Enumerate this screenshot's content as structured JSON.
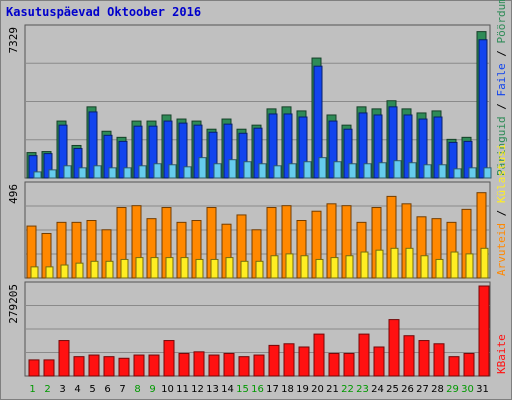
{
  "title": "Kasutuspäevad Oktoober 2016",
  "colors": {
    "background": "#c0c0c0",
    "plot_bg": "#c0c0c0",
    "gridline": "#8a8a8a",
    "title": "#0000cc",
    "weekday_label": "#000000",
    "weekend_label": "#009900",
    "pages": "#2e8b57",
    "files": "#1144ee",
    "hits": "#66ccee",
    "visits": "#ff8800",
    "sites": "#ffee22",
    "kbytes": "#ff1111"
  },
  "chart_data": [
    {
      "type": "bar",
      "panel": "top",
      "y_max_label": "7329",
      "ylim": [
        0,
        7329
      ],
      "grid": true,
      "categories": [
        "1",
        "2",
        "3",
        "4",
        "5",
        "6",
        "7",
        "8",
        "9",
        "10",
        "11",
        "12",
        "13",
        "14",
        "15",
        "16",
        "17",
        "18",
        "19",
        "20",
        "21",
        "22",
        "23",
        "24",
        "25",
        "26",
        "27",
        "28",
        "29",
        "30",
        "31"
      ],
      "weekend_days": [
        "1",
        "2",
        "8",
        "9",
        "15",
        "16",
        "22",
        "23",
        "29",
        "30"
      ],
      "side_labels": [
        {
          "text": "Päringuid",
          "color": "#2e8b57"
        },
        {
          "text": " / ",
          "color": "#000000"
        },
        {
          "text": "Faile",
          "color": "#1144ee"
        },
        {
          "text": " / ",
          "color": "#000000"
        },
        {
          "text": "Pöördumisi",
          "color": "#2e8b57"
        }
      ],
      "series": [
        {
          "color_key": "pages",
          "values": [
            1250,
            1300,
            2800,
            1600,
            3500,
            2300,
            2000,
            2800,
            2800,
            3100,
            2900,
            2800,
            2400,
            2900,
            2400,
            2600,
            3400,
            3500,
            3300,
            5900,
            3100,
            2600,
            3500,
            3400,
            3800,
            3400,
            3200,
            3300,
            1900,
            2000,
            7200
          ]
        },
        {
          "color_key": "files",
          "values": [
            1100,
            1200,
            2600,
            1450,
            3250,
            2100,
            1800,
            2550,
            2550,
            2800,
            2700,
            2600,
            2250,
            2650,
            2200,
            2450,
            3150,
            3150,
            3000,
            5500,
            2800,
            2400,
            3200,
            3100,
            3500,
            3100,
            2900,
            3000,
            1750,
            1800,
            6800
          ]
        },
        {
          "color_key": "hits",
          "values": [
            300,
            400,
            600,
            500,
            600,
            500,
            500,
            600,
            700,
            650,
            550,
            1000,
            700,
            900,
            800,
            700,
            600,
            700,
            800,
            1000,
            800,
            700,
            700,
            750,
            850,
            750,
            650,
            650,
            450,
            500,
            500
          ]
        }
      ]
    },
    {
      "type": "bar",
      "panel": "middle",
      "y_max_label": "496",
      "ylim": [
        0,
        496
      ],
      "grid": true,
      "categories": [
        "1",
        "2",
        "3",
        "4",
        "5",
        "6",
        "7",
        "8",
        "9",
        "10",
        "11",
        "12",
        "13",
        "14",
        "15",
        "16",
        "17",
        "18",
        "19",
        "20",
        "21",
        "22",
        "23",
        "24",
        "25",
        "26",
        "27",
        "28",
        "29",
        "30",
        "31"
      ],
      "side_labels": [
        {
          "text": "Arvuteid",
          "color": "#ff8800"
        },
        {
          "text": " / ",
          "color": "#000000"
        },
        {
          "text": "Külastusi",
          "color": "#ffee22"
        }
      ],
      "series": [
        {
          "color_key": "visits",
          "values": [
            280,
            240,
            300,
            300,
            310,
            260,
            380,
            390,
            320,
            380,
            300,
            310,
            380,
            290,
            340,
            260,
            380,
            390,
            310,
            360,
            400,
            390,
            300,
            380,
            440,
            400,
            330,
            320,
            300,
            370,
            460
          ]
        },
        {
          "color_key": "sites",
          "values": [
            60,
            60,
            70,
            80,
            90,
            90,
            100,
            110,
            110,
            110,
            110,
            100,
            100,
            110,
            90,
            90,
            120,
            130,
            120,
            100,
            110,
            120,
            140,
            150,
            160,
            160,
            120,
            100,
            140,
            130,
            160
          ]
        }
      ]
    },
    {
      "type": "bar",
      "panel": "bottom",
      "y_max_label": "279205",
      "ylim": [
        0,
        279205
      ],
      "grid": true,
      "categories": [
        "1",
        "2",
        "3",
        "4",
        "5",
        "6",
        "7",
        "8",
        "9",
        "10",
        "11",
        "12",
        "13",
        "14",
        "15",
        "16",
        "17",
        "18",
        "19",
        "20",
        "21",
        "22",
        "23",
        "24",
        "25",
        "26",
        "27",
        "28",
        "29",
        "30",
        "31"
      ],
      "side_labels": [
        {
          "text": "KBaite",
          "color": "#ff1111"
        }
      ],
      "series": [
        {
          "color_key": "kbytes",
          "values": [
            50000,
            50000,
            110000,
            60000,
            65000,
            60000,
            55000,
            65000,
            65000,
            110000,
            70000,
            75000,
            65000,
            70000,
            60000,
            65000,
            95000,
            100000,
            90000,
            130000,
            70000,
            70000,
            130000,
            90000,
            175000,
            125000,
            110000,
            100000,
            60000,
            70000,
            279205
          ]
        }
      ]
    }
  ]
}
